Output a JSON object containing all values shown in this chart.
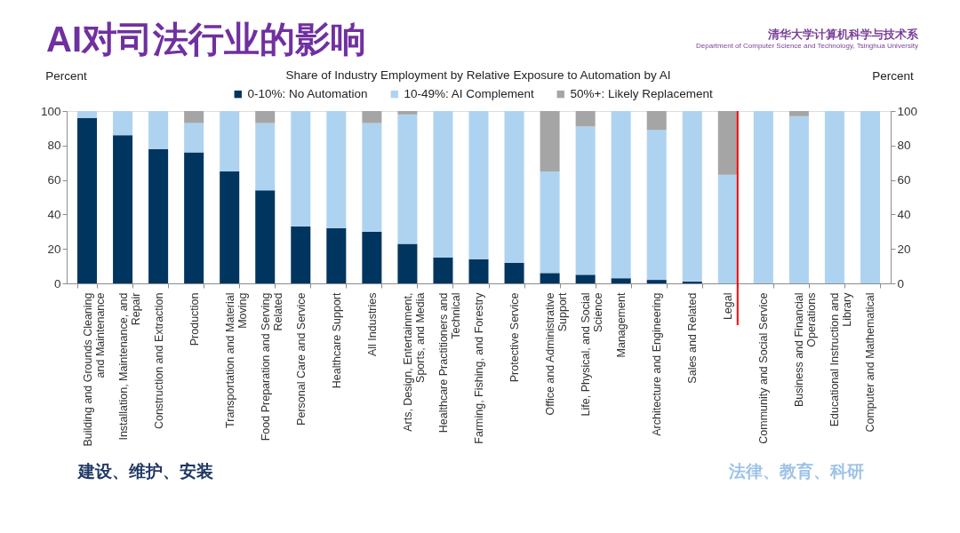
{
  "chart_data": {
    "type": "bar",
    "title": "AI对司法行业的影响",
    "subtitle": "Share of Industry Employment by Relative Exposure to Automation by AI",
    "ylabel": "Percent",
    "y2label": "Percent",
    "categories": [
      "Building and Grounds Cleaning and Maintenance",
      "Installation, Maintenance, and Repair",
      "Construction and Extraction",
      "Production",
      "Transportation and Material Moving",
      "Food Preparation and Serving Related",
      "Personal Care and Service",
      "Healthcare Support",
      "All Industries",
      "Arts, Design, Entertainment, Sports, and Media",
      "Healthcare Practitioners and Technical",
      "Farming, Fishing, and Forestry",
      "Protective Service",
      "Office and Administrative Support",
      "Life, Physical, and Social Science",
      "Management",
      "Architecture and Engineering",
      "Sales and Related",
      "Legal",
      "Community and Social Service",
      "Business and Financial Operations",
      "Educational Instruction and Library",
      "Computer and Mathematical"
    ],
    "series": [
      {
        "name": "0-10%: No Automation",
        "color": "#00355f",
        "values": [
          96,
          86,
          78,
          76,
          65,
          54,
          33,
          32,
          30,
          23,
          15,
          14,
          12,
          6,
          5,
          3,
          2,
          1,
          null,
          null,
          null,
          null,
          null
        ]
      },
      {
        "name": "10-49%: AI Complement",
        "color": "#aed3f0",
        "values": [
          4,
          14,
          22,
          17,
          35,
          39,
          67,
          68,
          63,
          75,
          85,
          86,
          88,
          59,
          86,
          97,
          87,
          99,
          63,
          100,
          97,
          100,
          100
        ]
      },
      {
        "name": "50%+: Likely Replacement",
        "color": "#a5a5a5",
        "values": [
          null,
          null,
          null,
          7,
          null,
          7,
          null,
          null,
          7,
          2,
          null,
          null,
          null,
          35,
          9,
          null,
          11,
          null,
          37,
          null,
          3,
          null,
          null
        ]
      }
    ],
    "stacked": true,
    "ylim": [
      0,
      100
    ],
    "yticks": [
      0,
      20,
      40,
      60,
      80,
      100
    ],
    "y2lim": [
      0,
      100
    ],
    "y2ticks": [
      0,
      20,
      40,
      60,
      80,
      100
    ],
    "legend": "top",
    "grid": false,
    "ref_lines": [
      {
        "axis": "x",
        "value": "Legal",
        "color": "#ff0000"
      }
    ],
    "annotations": [
      "建设、维护、安装",
      "法律、教育、科研",
      "清华大学计算机科学与技术系",
      "Department of Computer Science and Technology, Tsinghua University"
    ]
  }
}
